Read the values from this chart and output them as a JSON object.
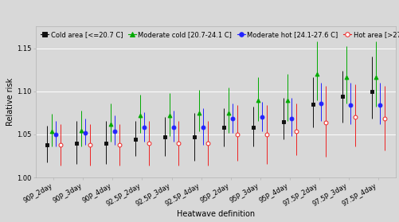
{
  "x_labels": [
    "90P_2day",
    "90P_3day",
    "90P_4day",
    "92.5P_2day",
    "92.5P_3day",
    "92.5P_4day",
    "95P_2day",
    "95P_3day",
    "95P_4day",
    "97.5P_2day",
    "97.5P_3day",
    "97.5P_4day"
  ],
  "series": {
    "cold": {
      "color": "#111111",
      "marker": "s",
      "filled": true,
      "label": "Cold area [<=20.7 C]",
      "center": [
        1.038,
        1.04,
        1.04,
        1.044,
        1.047,
        1.047,
        1.058,
        1.058,
        1.065,
        1.085,
        1.094,
        1.1
      ],
      "lower": [
        1.018,
        1.016,
        1.016,
        1.025,
        1.025,
        1.02,
        1.036,
        1.036,
        1.044,
        1.058,
        1.064,
        1.068
      ],
      "upper": [
        1.06,
        1.066,
        1.066,
        1.066,
        1.07,
        1.075,
        1.08,
        1.082,
        1.092,
        1.116,
        1.124,
        1.14
      ]
    },
    "mod_cold": {
      "color": "#00aa00",
      "marker": "^",
      "filled": true,
      "label": "Moderate cold [20.7-24.1 C]",
      "center": [
        1.054,
        1.055,
        1.062,
        1.072,
        1.072,
        1.075,
        1.075,
        1.09,
        1.09,
        1.12,
        1.116,
        1.116
      ],
      "lower": [
        1.036,
        1.036,
        1.042,
        1.052,
        1.048,
        1.054,
        1.052,
        1.066,
        1.066,
        1.09,
        1.086,
        1.082
      ],
      "upper": [
        1.074,
        1.078,
        1.086,
        1.096,
        1.098,
        1.102,
        1.104,
        1.116,
        1.12,
        1.158,
        1.152,
        1.158
      ]
    },
    "mod_hot": {
      "color": "#2222ff",
      "marker": "o",
      "filled": true,
      "label": "Moderate hot [24.1-27.6 C]",
      "center": [
        1.05,
        1.052,
        1.054,
        1.058,
        1.058,
        1.058,
        1.068,
        1.07,
        1.068,
        1.086,
        1.084,
        1.084
      ],
      "lower": [
        1.036,
        1.038,
        1.038,
        1.042,
        1.042,
        1.038,
        1.052,
        1.054,
        1.048,
        1.066,
        1.062,
        1.062
      ],
      "upper": [
        1.066,
        1.068,
        1.072,
        1.076,
        1.078,
        1.08,
        1.086,
        1.088,
        1.092,
        1.11,
        1.11,
        1.11
      ]
    },
    "hot": {
      "color": "#ee2222",
      "marker": "o",
      "filled": false,
      "label": "Hot area [>27.6 C]",
      "center": [
        1.038,
        1.038,
        1.038,
        1.04,
        1.04,
        1.04,
        1.05,
        1.05,
        1.054,
        1.064,
        1.07,
        1.068
      ],
      "lower": [
        1.014,
        1.014,
        1.014,
        1.014,
        1.014,
        1.014,
        1.02,
        1.016,
        1.026,
        1.024,
        1.036,
        1.032
      ],
      "upper": [
        1.062,
        1.062,
        1.062,
        1.066,
        1.066,
        1.066,
        1.084,
        1.084,
        1.086,
        1.106,
        1.108,
        1.106
      ]
    }
  },
  "xlabel": "Heatwave definition",
  "ylabel": "Relative risk",
  "ylim": [
    1.0,
    1.175
  ],
  "yticks": [
    1.0,
    1.05,
    1.1,
    1.15
  ],
  "plot_bg": "#d8d8d8",
  "fig_bg": "#d8d8d8",
  "grid_color": "#ffffff",
  "axis_fontsize": 7,
  "tick_fontsize": 6,
  "legend_fontsize": 6
}
